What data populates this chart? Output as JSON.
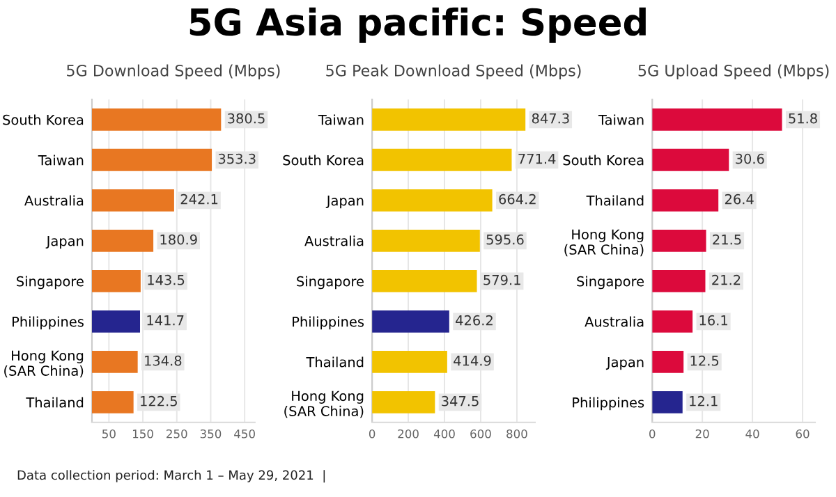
{
  "chart_data": [
    {
      "type": "bar",
      "orientation": "horizontal",
      "title": "5G Asia pacific: Speed",
      "subtitle": "5G Download Speed (Mbps)",
      "categories": [
        "South Korea",
        "Taiwan",
        "Australia",
        "Japan",
        "Singapore",
        "Philippines",
        "Hong Kong\n(SAR China)",
        "Thailand"
      ],
      "values": [
        380.5,
        353.3,
        242.1,
        180.9,
        143.5,
        141.7,
        134.8,
        122.5
      ],
      "colors": [
        "#e87722",
        "#e87722",
        "#e87722",
        "#e87722",
        "#e87722",
        "#25258f",
        "#e87722",
        "#e87722"
      ],
      "xlim": [
        0,
        480
      ],
      "xticks": [
        50,
        150,
        250,
        350,
        450
      ],
      "grid": "x",
      "data_labels": true,
      "annotations": [
        "Data collection period: March 1 – May 29, 2021  |"
      ]
    },
    {
      "type": "bar",
      "orientation": "horizontal",
      "subtitle": "5G Peak Download Speed (Mbps)",
      "categories": [
        "Taiwan",
        "South Korea",
        "Japan",
        "Australia",
        "Singapore",
        "Philippines",
        "Thailand",
        "Hong Kong\n(SAR China)"
      ],
      "values": [
        847.3,
        771.4,
        664.2,
        595.6,
        579.1,
        426.2,
        414.9,
        347.5
      ],
      "colors": [
        "#f2c300",
        "#f2c300",
        "#f2c300",
        "#f2c300",
        "#f2c300",
        "#25258f",
        "#f2c300",
        "#f2c300"
      ],
      "xlim": [
        0,
        900
      ],
      "xticks": [
        0,
        200,
        400,
        600,
        800
      ],
      "grid": "x",
      "data_labels": true
    },
    {
      "type": "bar",
      "orientation": "horizontal",
      "subtitle": "5G Upload Speed (Mbps)",
      "categories": [
        "Taiwan",
        "South Korea",
        "Thailand",
        "Hong Kong\n(SAR China)",
        "Singapore",
        "Australia",
        "Japan",
        "Philippines"
      ],
      "values": [
        51.8,
        30.6,
        26.4,
        21.5,
        21.2,
        16.1,
        12.5,
        12.1
      ],
      "colors": [
        "#dc0a3c",
        "#dc0a3c",
        "#dc0a3c",
        "#dc0a3c",
        "#dc0a3c",
        "#dc0a3c",
        "#dc0a3c",
        "#25258f"
      ],
      "xlim": [
        0,
        65
      ],
      "xticks": [
        0,
        20,
        40,
        60
      ],
      "grid": "x",
      "data_labels": true
    }
  ]
}
